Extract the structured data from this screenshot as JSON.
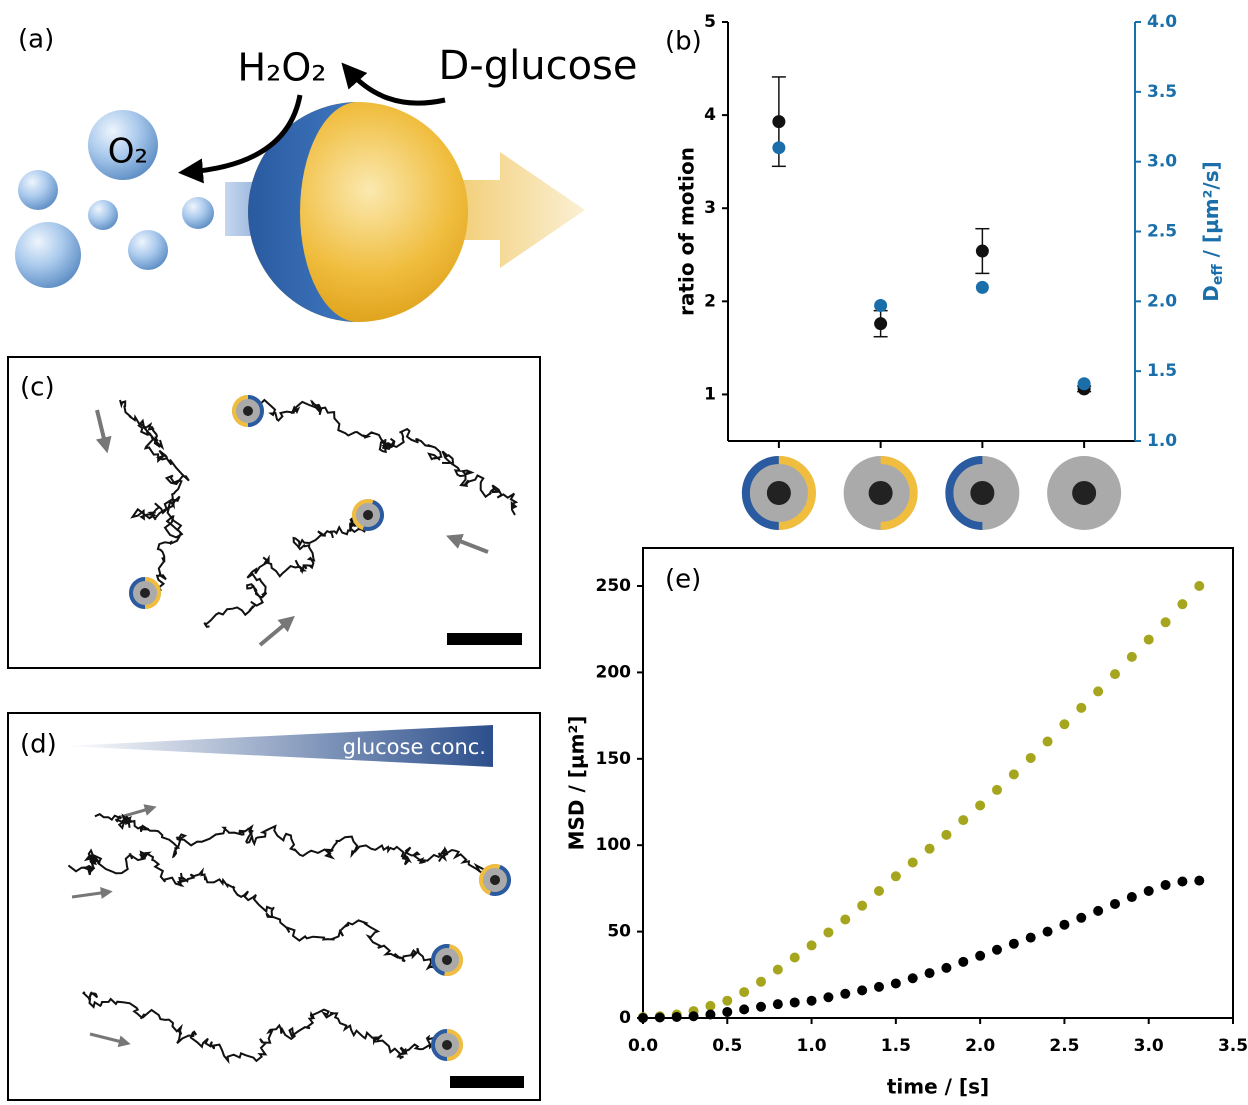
{
  "panel_a": {
    "label": "(a)",
    "h2o2": "H₂O₂",
    "glucose": "D-glucose",
    "o2": "O₂"
  },
  "panel_c": {
    "label": "(c)"
  },
  "panel_d": {
    "label": "(d)",
    "gradient_label": "glucose conc."
  },
  "chart_data": [
    {
      "type": "scatter",
      "panel_label": "(b)",
      "categories": [
        null,
        null,
        null,
        null
      ],
      "ylabel": "ratio of motion",
      "y2label": [
        "D",
        "eff",
        " / [µm²/s]"
      ],
      "ylim": [
        0.5,
        5
      ],
      "yticks": [
        1,
        2,
        3,
        4,
        5
      ],
      "y2lim": [
        1,
        4
      ],
      "y2ticks": [
        {
          "value": 1,
          "label": "1.0"
        },
        {
          "value": 1.5,
          "label": "1.5"
        },
        {
          "value": 2,
          "label": "2.0"
        },
        {
          "value": 2.5,
          "label": "2.5"
        },
        {
          "value": 3,
          "label": "3.0"
        },
        {
          "value": 3.5,
          "label": "3.5"
        },
        {
          "value": 4,
          "label": "4.0"
        }
      ],
      "series": [
        {
          "color": "#111111",
          "values": [
            3.93,
            1.76,
            2.54,
            1.06
          ],
          "errors": [
            0.48,
            0.14,
            0.24,
            0.03
          ]
        },
        {
          "color": "#1a6fab",
          "axis": "y2",
          "values": [
            3.1,
            1.97,
            2.1,
            1.41
          ]
        }
      ]
    },
    {
      "type": "scatter",
      "panel_label": "(e)",
      "xlabel": "time / [s]",
      "ylabel": "MSD / [µm²]",
      "xlim": [
        0,
        3.5
      ],
      "xticks": [
        {
          "value": 0,
          "label": "0.0"
        },
        {
          "value": 0.5,
          "label": "0.5"
        },
        {
          "value": 1,
          "label": "1.0"
        },
        {
          "value": 1.5,
          "label": "1.5"
        },
        {
          "value": 2,
          "label": "2.0"
        },
        {
          "value": 2.5,
          "label": "2.5"
        },
        {
          "value": 3,
          "label": "3.0"
        },
        {
          "value": 3.5,
          "label": "3.5"
        }
      ],
      "ylim": [
        0,
        272
      ],
      "yticks": [
        0,
        50,
        100,
        150,
        200,
        250
      ],
      "x": [
        0,
        0.1,
        0.2,
        0.3,
        0.4,
        0.5,
        0.6,
        0.7,
        0.8,
        0.9,
        1,
        1.1,
        1.2,
        1.3,
        1.4,
        1.5,
        1.6,
        1.7,
        1.8,
        1.9,
        2,
        2.1,
        2.2,
        2.3,
        2.4,
        2.5,
        2.6,
        2.7,
        2.8,
        2.9,
        3,
        3.1,
        3.2,
        3.3
      ],
      "series": [
        {
          "color": "#a5a51e",
          "values": [
            0.5,
            1,
            2,
            4,
            7,
            10,
            15,
            21,
            28,
            35,
            42,
            49.5,
            57,
            65,
            73.5,
            82,
            90,
            98,
            106,
            114.5,
            123,
            132,
            141,
            150.5,
            160,
            170,
            179.5,
            189,
            199,
            209,
            219,
            229,
            239.5,
            250
          ]
        },
        {
          "color": "#000000",
          "values": [
            0,
            0.3,
            0.6,
            1,
            2,
            3.5,
            5,
            6.5,
            8,
            9,
            10,
            12,
            14,
            16,
            18,
            20,
            23,
            26,
            29,
            32.5,
            36,
            39.5,
            43,
            46.5,
            50,
            54,
            58,
            62,
            66,
            70,
            73.5,
            77,
            79,
            79.5
          ]
        }
      ]
    }
  ]
}
